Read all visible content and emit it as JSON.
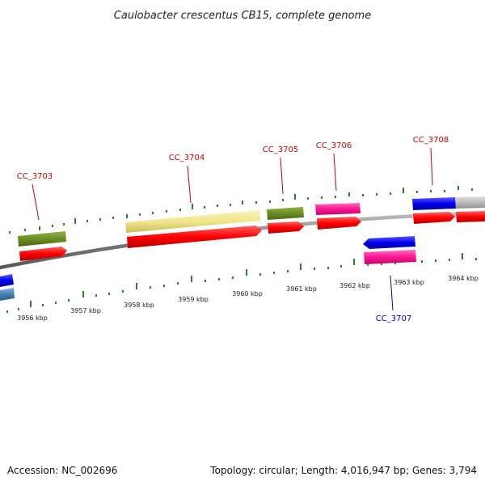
{
  "title": "Caulobacter crescentus CB15, complete genome",
  "footer": {
    "accession": "Accession: NC_002696",
    "summary": "Topology: circular; Length: 4,016,947 bp; Genes: 3,794"
  },
  "kbp_ticks": [
    {
      "label": "3956 kbp",
      "pos": 3956
    },
    {
      "label": "3957 kbp",
      "pos": 3957
    },
    {
      "label": "3958 kbp",
      "pos": 3958
    },
    {
      "label": "3959 kbp",
      "pos": 3959
    },
    {
      "label": "3960 kbp",
      "pos": 3960
    },
    {
      "label": "3961 kbp",
      "pos": 3961
    },
    {
      "label": "3962 kbp",
      "pos": 3962
    },
    {
      "label": "3963 kbp",
      "pos": 3963
    },
    {
      "label": "3964 kbp",
      "pos": 3964
    }
  ],
  "gene_labels": [
    {
      "name": "CC_3703",
      "color": "#cc0000"
    },
    {
      "name": "CC_3704",
      "color": "#cc0000"
    },
    {
      "name": "CC_3705",
      "color": "#cc0000"
    },
    {
      "name": "CC_3706",
      "color": "#cc0000"
    },
    {
      "name": "CC_3707",
      "color": "#0000cc"
    },
    {
      "name": "CC_3708",
      "color": "#cc0000"
    }
  ],
  "colors": {
    "cds": "#ff0000",
    "olive": "#6b8e23",
    "khaki": "#f0e68c",
    "magenta": "#ff1493",
    "blue": "#0000ee",
    "steelblue": "#4682b4",
    "grey": "#bbbbbb",
    "tick": "#2e7d32",
    "backbone": "#888888"
  }
}
